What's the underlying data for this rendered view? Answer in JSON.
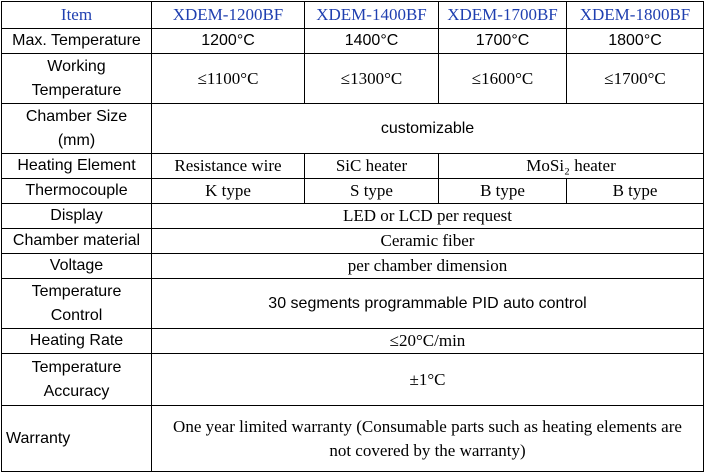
{
  "table": {
    "header": [
      "Item",
      "XDEM-1200BF",
      "XDEM-1400BF",
      "XDEM-1700BF",
      "XDEM-1800BF"
    ],
    "rows": [
      [
        "Max. Temperature",
        "1200°C",
        "1400°C",
        "1700°C",
        "1800°C"
      ],
      [
        "Working Temperature",
        "≤1100°C",
        "≤1300°C",
        "≤1600°C",
        "≤1700°C"
      ],
      [
        "Chamber Size (mm)",
        "customizable"
      ],
      [
        "Heating Element",
        "Resistance wire",
        "SiC heater",
        "MoSi₂ heater"
      ],
      [
        "Thermocouple",
        "K type",
        "S type",
        "B type",
        "B type"
      ],
      [
        "Display",
        "LED or LCD per request"
      ],
      [
        "Chamber material",
        "Ceramic fiber"
      ],
      [
        "Voltage",
        "per chamber dimension"
      ],
      [
        "Temperature Control",
        "30 segments programmable PID auto control"
      ],
      [
        "Heating Rate",
        "≤20°C/min"
      ],
      [
        "Temperature Accuracy",
        "±1°C"
      ],
      [
        "Warranty",
        "One year limited warranty (Consumable parts such as heating elements are not covered by the warranty)"
      ]
    ]
  }
}
